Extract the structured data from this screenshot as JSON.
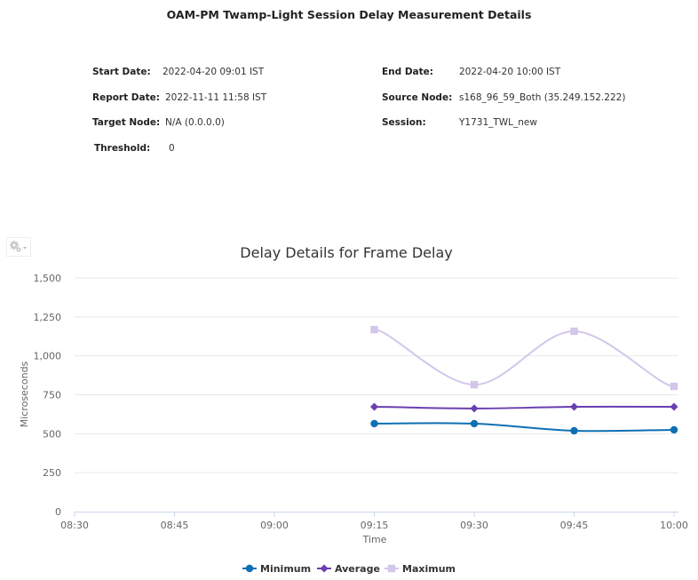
{
  "page": {
    "title": "OAM-PM Twamp-Light Session Delay Measurement Details"
  },
  "details": {
    "start_date": {
      "label": "Start Date:",
      "value": "2022-04-20 09:01 IST"
    },
    "end_date": {
      "label": "End Date:",
      "value": "2022-04-20 10:00 IST"
    },
    "report_date": {
      "label": "Report Date:",
      "value": "2022-11-11 11:58 IST"
    },
    "source_node": {
      "label": "Source Node:",
      "value": "s168_96_59_Both (35.249.152.222)"
    },
    "target_node": {
      "label": "Target Node:",
      "value": "N/A (0.0.0.0)"
    },
    "session": {
      "label": "Session:",
      "value": "Y1731_TWL_new"
    },
    "threshold": {
      "label": "Threshold:",
      "value": "0"
    }
  },
  "toolbar": {
    "settings_icon": "gear-icon",
    "settings_dropdown_icon": "caret-down-icon"
  },
  "chart_data": {
    "type": "line",
    "title": "Delay Details for Frame Delay",
    "xlabel": "Time",
    "ylabel": "Microseconds",
    "x_ticks": [
      "08:30",
      "08:45",
      "09:00",
      "09:15",
      "09:30",
      "09:45",
      "10:00"
    ],
    "y_ticks": [
      "0",
      "250",
      "500",
      "750",
      "1,000",
      "1,250",
      "1,500"
    ],
    "ylim": [
      0,
      1500
    ],
    "grid": true,
    "legend_position": "bottom",
    "x": [
      "09:15",
      "09:30",
      "09:45",
      "10:00"
    ],
    "series": [
      {
        "name": "Minimum",
        "color": "#0f6fb3",
        "marker": "circle",
        "values": [
          565,
          565,
          519,
          525
        ]
      },
      {
        "name": "Average",
        "color": "#6a3fb0",
        "marker": "diamond",
        "values": [
          673,
          662,
          673,
          673
        ]
      },
      {
        "name": "Maximum",
        "color": "#d2c6ea",
        "marker": "square",
        "values": [
          1169,
          815,
          1158,
          804
        ]
      }
    ]
  }
}
